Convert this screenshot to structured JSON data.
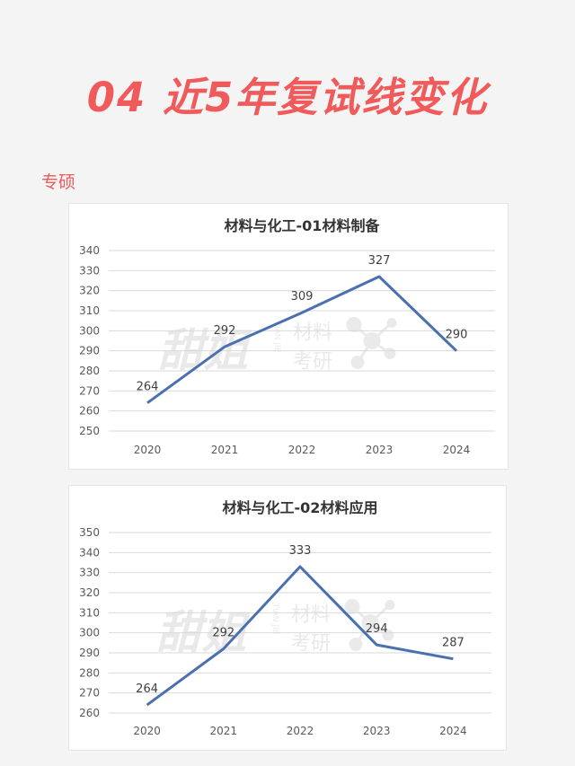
{
  "headline": "04 近5年复试线变化",
  "section_label": "专硕",
  "watermark": {
    "brand": "甜姐",
    "pinyin": "TIAN JIE",
    "line1": "材料",
    "line2": "考研"
  },
  "colors": {
    "accent": "#f05a5a",
    "series_line": "#4a70b0",
    "grid": "#d9d9d9",
    "background": "#f4f4f4"
  },
  "chart_data": [
    {
      "type": "line",
      "title": "材料与化工-01材料制备",
      "x": [
        "2020",
        "2021",
        "2022",
        "2023",
        "2024"
      ],
      "series": [
        {
          "values": [
            264,
            292,
            309,
            327,
            290
          ]
        }
      ],
      "ylim": [
        250,
        340
      ],
      "yticks": [
        250,
        260,
        270,
        280,
        290,
        300,
        310,
        320,
        330,
        340
      ],
      "grid": true,
      "data_labels": true
    },
    {
      "type": "line",
      "title": "材料与化工-02材料应用",
      "x": [
        "2020",
        "2021",
        "2022",
        "2023",
        "2024"
      ],
      "series": [
        {
          "values": [
            264,
            292,
            333,
            294,
            287
          ]
        }
      ],
      "ylim": [
        260,
        350
      ],
      "yticks": [
        260,
        270,
        280,
        290,
        300,
        310,
        320,
        330,
        340,
        350
      ],
      "grid": true,
      "data_labels": true
    }
  ]
}
